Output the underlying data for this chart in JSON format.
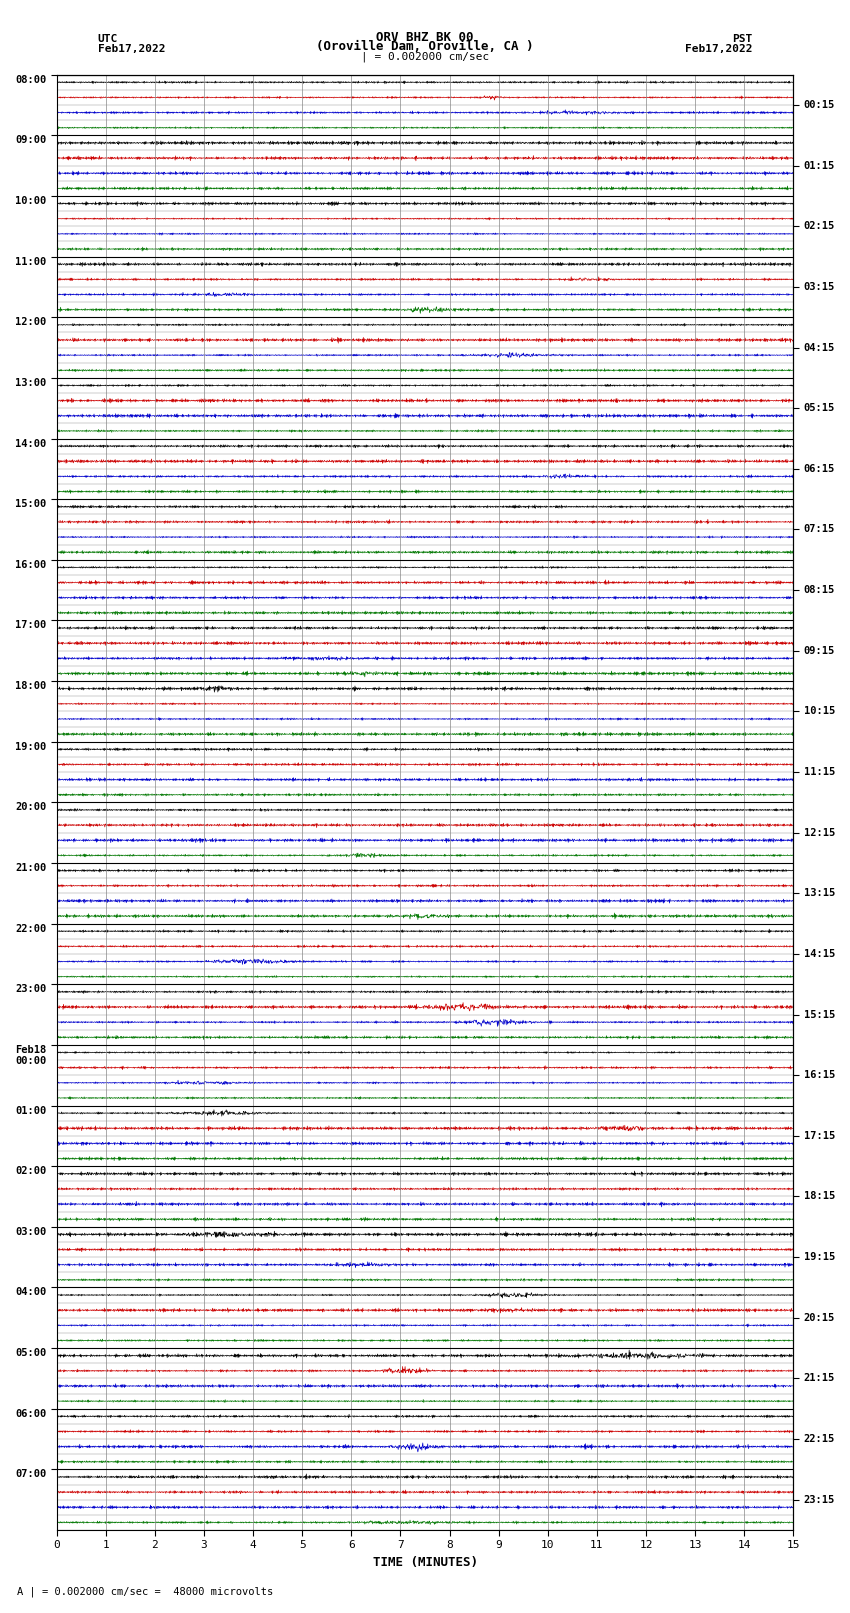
{
  "title_line1": "ORV BHZ BK 00",
  "title_line2": "(Oroville Dam, Oroville, CA )",
  "scale_label": "| = 0.002000 cm/sec",
  "footer_label": "A | = 0.002000 cm/sec =  48000 microvolts",
  "left_label": "UTC",
  "left_date": "Feb17,2022",
  "right_label": "PST",
  "right_date": "Feb17,2022",
  "xlabel": "TIME (MINUTES)",
  "xmin": 0,
  "xmax": 15,
  "xticks": [
    0,
    1,
    2,
    3,
    4,
    5,
    6,
    7,
    8,
    9,
    10,
    11,
    12,
    13,
    14,
    15
  ],
  "background_color": "#ffffff",
  "grid_color": "#888888",
  "hline_color": "#000000",
  "trace_colors": [
    "#000000",
    "#cc0000",
    "#0000cc",
    "#007700"
  ],
  "left_times_labeled": [
    "08:00",
    "09:00",
    "10:00",
    "11:00",
    "12:00",
    "13:00",
    "14:00",
    "15:00",
    "16:00",
    "17:00",
    "18:00",
    "19:00",
    "20:00",
    "21:00",
    "22:00",
    "23:00",
    "Feb18\n00:00",
    "01:00",
    "02:00",
    "03:00",
    "04:00",
    "05:00",
    "06:00",
    "07:00"
  ],
  "right_times_labeled": [
    "00:15",
    "01:15",
    "02:15",
    "03:15",
    "04:15",
    "05:15",
    "06:15",
    "07:15",
    "08:15",
    "09:15",
    "10:15",
    "11:15",
    "12:15",
    "13:15",
    "14:15",
    "15:15",
    "16:15",
    "17:15",
    "18:15",
    "19:15",
    "20:15",
    "21:15",
    "22:15",
    "23:15"
  ],
  "num_hours": 24,
  "traces_per_hour": 4,
  "noise_seed": 42
}
